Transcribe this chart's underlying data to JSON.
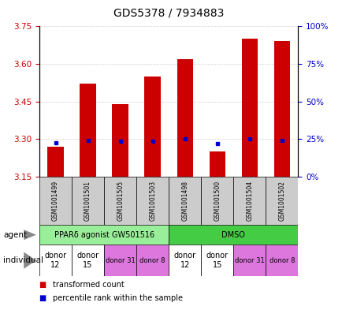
{
  "title": "GDS5378 / 7934883",
  "samples": [
    "GSM1001499",
    "GSM1001501",
    "GSM1001505",
    "GSM1001503",
    "GSM1001498",
    "GSM1001500",
    "GSM1001504",
    "GSM1001502"
  ],
  "red_values": [
    3.27,
    3.52,
    3.44,
    3.55,
    3.62,
    3.25,
    3.7,
    3.69
  ],
  "blue_values": [
    3.285,
    3.295,
    3.292,
    3.292,
    3.3,
    3.283,
    3.3,
    3.295
  ],
  "ylim": [
    3.15,
    3.75
  ],
  "yticks_left": [
    3.15,
    3.3,
    3.45,
    3.6,
    3.75
  ],
  "yticks_right_vals": [
    0,
    25,
    50,
    75,
    100
  ],
  "yticks_right_pos": [
    3.15,
    3.3,
    3.45,
    3.6,
    3.75
  ],
  "bar_color": "#cc0000",
  "dot_color": "#0000cc",
  "bar_base": 3.15,
  "agent_groups": [
    {
      "label": "PPARδ agonist GW501516",
      "start": 0,
      "end": 4,
      "color": "#99ee99"
    },
    {
      "label": "DMSO",
      "start": 4,
      "end": 8,
      "color": "#44cc44"
    }
  ],
  "individual_groups": [
    {
      "label": "donor\n12",
      "start": 0,
      "end": 1,
      "color": "#ffffff",
      "fontsize": 7
    },
    {
      "label": "donor\n15",
      "start": 1,
      "end": 2,
      "color": "#ffffff",
      "fontsize": 7
    },
    {
      "label": "donor 31",
      "start": 2,
      "end": 3,
      "color": "#dd77dd",
      "fontsize": 6
    },
    {
      "label": "donor 8",
      "start": 3,
      "end": 4,
      "color": "#dd77dd",
      "fontsize": 6
    },
    {
      "label": "donor\n12",
      "start": 4,
      "end": 5,
      "color": "#ffffff",
      "fontsize": 7
    },
    {
      "label": "donor\n15",
      "start": 5,
      "end": 6,
      "color": "#ffffff",
      "fontsize": 7
    },
    {
      "label": "donor 31",
      "start": 6,
      "end": 7,
      "color": "#dd77dd",
      "fontsize": 6
    },
    {
      "label": "donor 8",
      "start": 7,
      "end": 8,
      "color": "#dd77dd",
      "fontsize": 6
    }
  ],
  "sample_bg_color": "#cccccc",
  "grid_color": "#aaaaaa",
  "left_label_color": "#cc0000",
  "right_label_color": "#0000cc",
  "legend_red": "transformed count",
  "legend_blue": "percentile rank within the sample",
  "agent_label": "agent",
  "individual_label": "individual",
  "title_fontsize": 10,
  "tick_fontsize": 7.5,
  "bar_width": 0.5
}
